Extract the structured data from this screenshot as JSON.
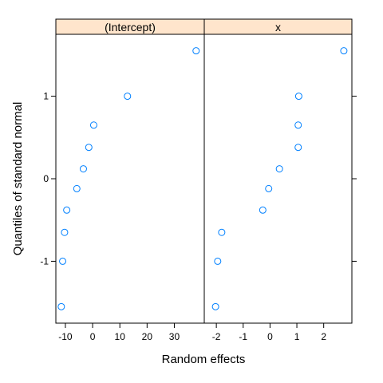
{
  "chart_data": {
    "type": "scatter",
    "xlabel": "Random effects",
    "ylabel": "Quantiles of standard normal",
    "point_color": "#0080ff",
    "strip_color": "#ffe5cc",
    "ylim": [
      -1.75,
      1.75
    ],
    "yticks": [
      -1,
      0,
      1
    ],
    "ytick_labels": [
      "-1",
      "0",
      "1"
    ],
    "panels": [
      {
        "name": "(Intercept)",
        "xlim": [
          -13.5,
          41
        ],
        "xticks": [
          -10,
          0,
          10,
          20,
          30
        ],
        "xtick_labels": [
          "-10",
          "0",
          "10",
          "20",
          "30"
        ],
        "points": [
          {
            "x": -11.5,
            "y": -1.55
          },
          {
            "x": -11.0,
            "y": -1.0
          },
          {
            "x": -10.3,
            "y": -0.65
          },
          {
            "x": -9.5,
            "y": -0.38
          },
          {
            "x": -5.8,
            "y": -0.12
          },
          {
            "x": -3.4,
            "y": 0.12
          },
          {
            "x": -1.4,
            "y": 0.38
          },
          {
            "x": 0.4,
            "y": 0.65
          },
          {
            "x": 12.8,
            "y": 1.0
          },
          {
            "x": 38.0,
            "y": 1.55
          }
        ]
      },
      {
        "name": "x",
        "xlim": [
          -2.45,
          3.05
        ],
        "xticks": [
          -2,
          -1,
          0,
          1,
          2
        ],
        "xtick_labels": [
          "-2",
          "-1",
          "0",
          "1",
          "2"
        ],
        "points": [
          {
            "x": -2.03,
            "y": -1.55
          },
          {
            "x": -1.95,
            "y": -1.0
          },
          {
            "x": -1.8,
            "y": -0.65
          },
          {
            "x": -0.27,
            "y": -0.38
          },
          {
            "x": -0.05,
            "y": -0.12
          },
          {
            "x": 0.35,
            "y": 0.12
          },
          {
            "x": 1.05,
            "y": 0.38
          },
          {
            "x": 1.05,
            "y": 0.65
          },
          {
            "x": 1.07,
            "y": 1.0
          },
          {
            "x": 2.75,
            "y": 1.55
          }
        ]
      }
    ]
  }
}
